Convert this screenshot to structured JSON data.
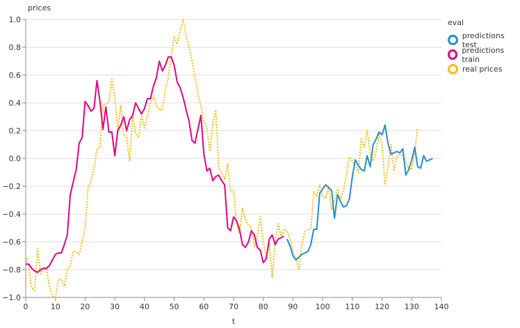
{
  "chart_data": {
    "type": "line",
    "title": "",
    "xlabel": "t",
    "ylabel": "prices",
    "xlim": [
      0,
      140
    ],
    "ylim": [
      -1.0,
      1.0
    ],
    "x_ticks": [
      "0",
      "10",
      "20",
      "30",
      "40",
      "50",
      "60",
      "70",
      "80",
      "90",
      "100",
      "110",
      "120",
      "130",
      "140"
    ],
    "y_ticks": [
      "1.0",
      "0.8",
      "0.6",
      "0.4",
      "0.2",
      "0.0",
      "−0.2",
      "−0.4",
      "−0.6",
      "−0.8",
      "−1.0"
    ],
    "grid": true,
    "legend_title": "eval",
    "legend_position": "top-right",
    "series": [
      {
        "name": "predictions test",
        "color": "#1f8fd1",
        "style": "solid",
        "x_start": 88,
        "values": [
          -0.58,
          -0.63,
          -0.7,
          -0.73,
          -0.71,
          -0.69,
          -0.68,
          -0.67,
          -0.62,
          -0.51,
          -0.51,
          -0.25,
          -0.22,
          -0.19,
          -0.21,
          -0.23,
          -0.43,
          -0.26,
          -0.31,
          -0.35,
          -0.34,
          -0.29,
          -0.13,
          -0.01,
          -0.05,
          -0.08,
          -0.09,
          0.02,
          -0.06,
          0.1,
          0.14,
          0.19,
          0.17,
          0.24,
          0.11,
          0.03,
          0.04,
          0.05,
          0.04,
          0.07,
          -0.12,
          -0.08,
          -0.01,
          0.08,
          -0.06,
          -0.07,
          0.02,
          -0.02,
          -0.01,
          0.0
        ]
      },
      {
        "name": "predictions train",
        "color": "#e5007e",
        "style": "solid",
        "x_start": 0,
        "values": [
          -0.76,
          -0.76,
          -0.79,
          -0.81,
          -0.82,
          -0.8,
          -0.79,
          -0.79,
          -0.77,
          -0.73,
          -0.69,
          -0.68,
          -0.68,
          -0.62,
          -0.55,
          -0.26,
          -0.17,
          -0.08,
          0.11,
          0.15,
          0.41,
          0.38,
          0.34,
          0.36,
          0.56,
          0.41,
          0.21,
          0.37,
          0.19,
          0.19,
          0.02,
          0.2,
          0.24,
          0.3,
          0.2,
          0.28,
          0.31,
          0.4,
          0.36,
          0.32,
          0.36,
          0.43,
          0.43,
          0.52,
          0.58,
          0.7,
          0.63,
          0.67,
          0.73,
          0.73,
          0.67,
          0.55,
          0.51,
          0.44,
          0.35,
          0.27,
          0.13,
          0.11,
          0.21,
          0.31,
          0.03,
          -0.09,
          -0.07,
          -0.16,
          -0.13,
          -0.12,
          -0.16,
          -0.19,
          -0.5,
          -0.52,
          -0.42,
          -0.45,
          -0.51,
          -0.62,
          -0.64,
          -0.6,
          -0.52,
          -0.55,
          -0.64,
          -0.66,
          -0.75,
          -0.72,
          -0.58,
          -0.55,
          -0.62,
          -0.58,
          -0.57,
          -0.56
        ]
      },
      {
        "name": "real prices",
        "color": "#fbbc05",
        "style": "dotted",
        "x_start": 0,
        "values": [
          -0.7,
          -0.78,
          -0.93,
          -0.95,
          -0.65,
          -0.83,
          -0.8,
          -0.8,
          -0.92,
          -0.99,
          -1.0,
          -0.87,
          -0.87,
          -0.92,
          -0.8,
          -0.77,
          -0.67,
          -0.67,
          -0.69,
          -0.6,
          -0.5,
          -0.21,
          -0.16,
          -0.07,
          0.07,
          0.08,
          0.39,
          0.39,
          0.4,
          0.57,
          0.44,
          0.21,
          0.38,
          0.17,
          0.15,
          -0.02,
          0.3,
          0.18,
          0.15,
          0.31,
          0.22,
          0.31,
          0.4,
          0.45,
          0.38,
          0.35,
          0.35,
          0.5,
          0.58,
          0.74,
          0.88,
          0.82,
          0.92,
          1.0,
          0.88,
          0.8,
          0.7,
          0.58,
          0.47,
          0.38,
          0.27,
          0.22,
          0.05,
          0.25,
          0.35,
          -0.07,
          -0.1,
          -0.15,
          -0.04,
          -0.24,
          -0.23,
          -0.47,
          -0.54,
          -0.36,
          -0.44,
          -0.48,
          -0.5,
          -0.63,
          -0.56,
          -0.42,
          -0.6,
          -0.71,
          -0.61,
          -0.86,
          -0.6,
          -0.47,
          -0.56,
          -0.51,
          -0.52,
          -0.58,
          -0.67,
          -0.72,
          -0.8,
          -0.62,
          -0.53,
          -0.51,
          -0.51,
          -0.24,
          -0.27,
          -0.19,
          -0.27,
          -0.29,
          -0.2,
          -0.37,
          -0.3,
          -0.22,
          -0.29,
          -0.23,
          -0.12,
          0.01,
          -0.02,
          -0.05,
          -0.1,
          0.15,
          0.08,
          0.2,
          0.04,
          -0.02,
          0.05,
          0.18,
          0.09,
          -0.19,
          -0.07,
          0.1,
          -0.09,
          0.01,
          0.03,
          0.02,
          -0.03,
          -0.07,
          -0.08,
          0.05,
          0.22
        ]
      }
    ]
  }
}
